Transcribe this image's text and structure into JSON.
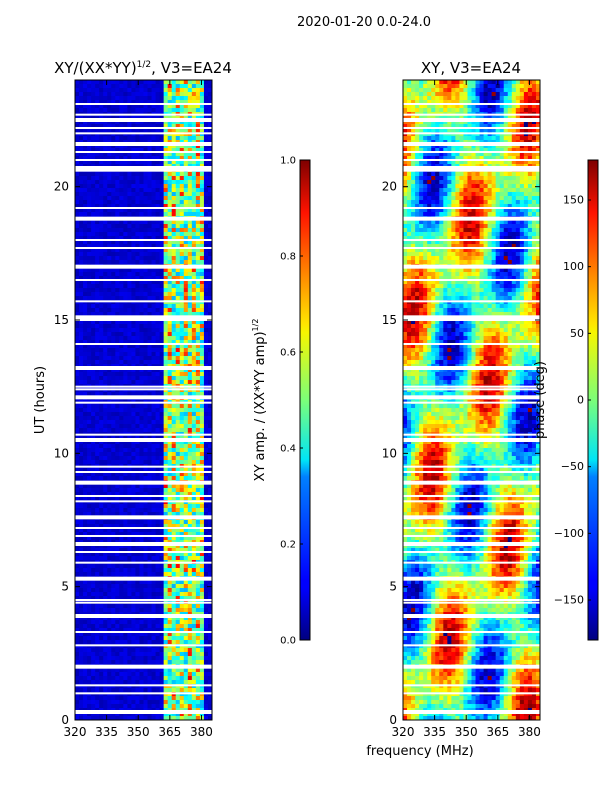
{
  "figure": {
    "suptitle": "2020-01-20 0.0-24.0",
    "xlabel_shared": "frequency (MHz)"
  },
  "colors": {
    "white_gap": "#ffffff",
    "frame": "#000000"
  },
  "chart_data": [
    {
      "type": "heatmap",
      "panel": "left",
      "title_main": "XY/(XX*YY)",
      "title_sup": "1/2",
      "title_rest": ", V3=EA24",
      "ylabel": "UT (hours)",
      "xlim": [
        320,
        385
      ],
      "ylim": [
        0,
        24
      ],
      "xticks": [
        320,
        335,
        350,
        365,
        380
      ],
      "xtick_labels": [
        "320",
        "335",
        "350",
        "365",
        "380"
      ],
      "yticks": [
        0,
        5,
        10,
        15,
        20
      ],
      "ytick_labels": [
        "0",
        "5",
        "10",
        "15",
        "20"
      ],
      "colormap": "jet",
      "description_values": {
        "background_amp": 0.05,
        "band_start_mhz": 362,
        "band_end_mhz": 381,
        "bright_band_amp_range": [
          0.3,
          0.9
        ]
      },
      "colorbar": {
        "label_main": "XY amp. / (XX*YY amp)",
        "label_sup": "1/2",
        "range": [
          0.0,
          1.0
        ],
        "ticks": [
          0.0,
          0.2,
          0.4,
          0.6,
          0.8,
          1.0
        ],
        "tick_labels": [
          "0.0",
          "0.2",
          "0.4",
          "0.6",
          "0.8",
          "1.0"
        ]
      }
    },
    {
      "type": "heatmap",
      "panel": "right",
      "title": "XY, V3=EA24",
      "xlim": [
        320,
        385
      ],
      "ylim": [
        0,
        24
      ],
      "xticks": [
        320,
        335,
        350,
        365,
        380
      ],
      "xtick_labels": [
        "320",
        "335",
        "350",
        "365",
        "380"
      ],
      "yticks": [
        0,
        5,
        10,
        15,
        20
      ],
      "ytick_labels": [
        "0",
        "5",
        "10",
        "15",
        "20"
      ],
      "colormap": "jet",
      "colorbar": {
        "label": "phase (deg)",
        "range": [
          -180,
          180
        ],
        "ticks": [
          -150,
          -100,
          -50,
          0,
          50,
          100,
          150
        ],
        "tick_labels": [
          "−150",
          "−100",
          "−50",
          "0",
          "50",
          "100",
          "150"
        ]
      }
    }
  ],
  "flagged_gaps_hours": [
    0.3,
    1.0,
    1.3,
    2.0,
    2.8,
    3.3,
    3.9,
    4.4,
    4.5,
    5.3,
    5.9,
    6.3,
    6.6,
    6.9,
    7.2,
    7.6,
    8.2,
    8.4,
    8.9,
    9.3,
    9.5,
    10.5,
    10.7,
    11.9,
    12.1,
    12.4,
    12.5,
    13.2,
    14.1,
    15.0,
    15.1,
    15.7,
    16.5,
    17.0,
    17.7,
    18.0,
    18.8,
    19.2,
    20.6,
    20.7,
    21.0,
    21.3,
    21.6,
    22.0,
    22.2,
    22.5,
    22.7,
    23.1
  ]
}
